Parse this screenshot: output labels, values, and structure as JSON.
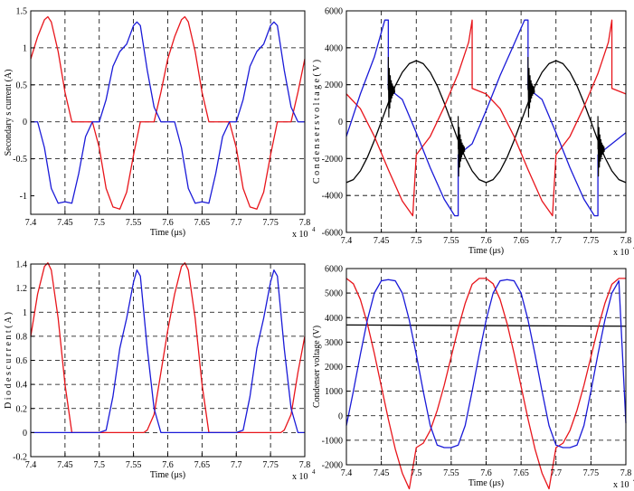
{
  "chart_data": [
    {
      "type": "line",
      "xlabel": "Time (μs)",
      "ylabel": "Secondary s current (A)",
      "x_multiplier": "x 10",
      "x_multiplier_exp": "4",
      "xlim": [
        7.4,
        7.8
      ],
      "ylim": [
        -1.25,
        1.5
      ],
      "xticks": [
        "7.4",
        "7.45",
        "7.5",
        "7.55",
        "7.6",
        "7.65",
        "7.7",
        "7.75",
        "7.8"
      ],
      "yticks": [
        "-1",
        "-0.5",
        "0",
        "0.5",
        "1",
        "1.5"
      ],
      "ytick_values": [
        -1,
        -0.5,
        0,
        0.5,
        1,
        1.5
      ],
      "grid": "dashed",
      "series": [
        {
          "color": "#e8151b",
          "x": [
            7.4,
            7.41,
            7.42,
            7.425,
            7.43,
            7.44,
            7.45,
            7.46,
            7.47,
            7.48,
            7.49,
            7.5,
            7.51,
            7.52,
            7.53,
            7.54,
            7.55,
            7.56,
            7.57,
            7.58,
            7.59,
            7.6,
            7.61,
            7.62,
            7.625,
            7.63,
            7.64,
            7.65,
            7.66,
            7.67,
            7.68,
            7.69,
            7.7,
            7.71,
            7.72,
            7.73,
            7.74,
            7.75,
            7.76,
            7.77,
            7.78,
            7.79,
            7.8
          ],
          "y": [
            0.85,
            1.15,
            1.38,
            1.42,
            1.35,
            0.95,
            0.4,
            0,
            0,
            0,
            0,
            -0.35,
            -0.9,
            -1.15,
            -1.18,
            -0.95,
            -0.45,
            0,
            0,
            0,
            0.4,
            0.85,
            1.15,
            1.38,
            1.42,
            1.35,
            0.95,
            0.4,
            0,
            0,
            0,
            0,
            -0.35,
            -0.9,
            -1.15,
            -1.18,
            -0.95,
            -0.45,
            0,
            0,
            0,
            0.4,
            0.85
          ]
        },
        {
          "color": "#1a1ad8",
          "x": [
            7.4,
            7.41,
            7.42,
            7.43,
            7.44,
            7.45,
            7.46,
            7.47,
            7.48,
            7.49,
            7.5,
            7.51,
            7.52,
            7.53,
            7.54,
            7.55,
            7.555,
            7.56,
            7.57,
            7.58,
            7.59,
            7.6,
            7.61,
            7.62,
            7.63,
            7.64,
            7.65,
            7.66,
            7.67,
            7.68,
            7.69,
            7.7,
            7.71,
            7.72,
            7.73,
            7.74,
            7.75,
            7.755,
            7.76,
            7.77,
            7.78,
            7.79,
            7.8
          ],
          "y": [
            0,
            0,
            -0.35,
            -0.9,
            -1.1,
            -1.08,
            -1.1,
            -0.7,
            -0.2,
            0,
            0,
            0.3,
            0.75,
            0.95,
            1.05,
            1.3,
            1.35,
            1.3,
            0.7,
            0.2,
            0,
            0,
            0,
            -0.35,
            -0.9,
            -1.1,
            -1.08,
            -1.1,
            -0.7,
            -0.2,
            0,
            0,
            0.3,
            0.75,
            0.95,
            1.05,
            1.3,
            1.35,
            1.3,
            0.7,
            0.2,
            0,
            0
          ]
        }
      ]
    },
    {
      "type": "line",
      "xlabel": "Time (μs)",
      "ylabel": "C o n d e n s e r s v o l t a g e ( V )",
      "x_multiplier": "x 10",
      "x_multiplier_exp": "4",
      "xlim": [
        7.4,
        7.8
      ],
      "ylim": [
        -6000,
        6000
      ],
      "xticks": [
        "7.4",
        "7.45",
        "7.5",
        "7.55",
        "7.6",
        "7.65",
        "7.7",
        "7.75",
        "7.8"
      ],
      "yticks": [
        "-6000",
        "-4000",
        "-2000",
        "0",
        "2000",
        "4000",
        "6000"
      ],
      "ytick_values": [
        -6000,
        -4000,
        -2000,
        0,
        2000,
        4000,
        6000
      ],
      "grid": "dashed",
      "series": [
        {
          "color": "#000000",
          "x": [
            7.4,
            7.41,
            7.42,
            7.43,
            7.44,
            7.45,
            7.46,
            7.47,
            7.48,
            7.49,
            7.5,
            7.51,
            7.52,
            7.53,
            7.54,
            7.55,
            7.56,
            7.57,
            7.58,
            7.59,
            7.6,
            7.61,
            7.62,
            7.63,
            7.64,
            7.65,
            7.66,
            7.67,
            7.68,
            7.69,
            7.7,
            7.71,
            7.72,
            7.73,
            7.74,
            7.75,
            7.76,
            7.77,
            7.78,
            7.79,
            7.8
          ],
          "y": [
            -3300,
            -3140,
            -2670,
            -1940,
            -1020,
            0,
            1020,
            1940,
            2670,
            3140,
            3300,
            3140,
            2670,
            1940,
            1020,
            0,
            -1020,
            -1940,
            -2670,
            -3140,
            -3300,
            -3140,
            -2670,
            -1940,
            -1020,
            0,
            1020,
            1940,
            2670,
            3140,
            3300,
            3140,
            2670,
            1940,
            1020,
            0,
            -1020,
            -1940,
            -2670,
            -3140,
            -3300
          ]
        },
        {
          "color": "#e8151b",
          "x": [
            7.4,
            7.42,
            7.44,
            7.46,
            7.48,
            7.495,
            7.5,
            7.52,
            7.54,
            7.56,
            7.575,
            7.58,
            7.58,
            7.6,
            7.62,
            7.64,
            7.66,
            7.68,
            7.695,
            7.7,
            7.72,
            7.74,
            7.76,
            7.775,
            7.78,
            7.78,
            7.8
          ],
          "y": [
            1500,
            700,
            -800,
            -2600,
            -4300,
            -5100,
            -1800,
            -800,
            800,
            2600,
            4300,
            5500,
            1800,
            1500,
            700,
            -800,
            -2600,
            -4300,
            -5100,
            -1800,
            -800,
            800,
            2600,
            4300,
            5500,
            1800,
            1500
          ]
        },
        {
          "color": "#1a1ad8",
          "x": [
            7.4,
            7.42,
            7.44,
            7.455,
            7.46,
            7.46,
            7.48,
            7.5,
            7.52,
            7.54,
            7.555,
            7.56,
            7.56,
            7.58,
            7.6,
            7.62,
            7.64,
            7.655,
            7.66,
            7.66,
            7.68,
            7.7,
            7.72,
            7.74,
            7.755,
            7.76,
            7.76,
            7.78,
            7.8
          ],
          "y": [
            -800,
            1500,
            3500,
            5500,
            5500,
            1800,
            1200,
            -600,
            -2500,
            -4200,
            -5100,
            -5100,
            -1800,
            -1200,
            600,
            2500,
            4200,
            5500,
            5500,
            1800,
            1200,
            -600,
            -2500,
            -4200,
            -5100,
            -5100,
            -1800,
            -1200,
            -600
          ]
        }
      ]
    },
    {
      "type": "line",
      "xlabel": "Time (μs)",
      "ylabel": "D i o d e s c u r r e n t ( A )",
      "x_multiplier": "x 10",
      "x_multiplier_exp": "4",
      "xlim": [
        7.4,
        7.8
      ],
      "ylim": [
        -0.2,
        1.4
      ],
      "xticks": [
        "7.4",
        "7.45",
        "7.5",
        "7.55",
        "7.6",
        "7.65",
        "7.7",
        "7.75",
        "7.8"
      ],
      "yticks": [
        "-0.2",
        "0",
        "0.2",
        "0.4",
        "0.6",
        "0.8",
        "1",
        "1.2",
        "1.4"
      ],
      "ytick_values": [
        -0.2,
        0,
        0.2,
        0.4,
        0.6,
        0.8,
        1,
        1.2,
        1.4
      ],
      "grid": "dashed",
      "series": [
        {
          "color": "#e8151b",
          "x": [
            7.4,
            7.41,
            7.42,
            7.425,
            7.43,
            7.44,
            7.45,
            7.46,
            7.47,
            7.5,
            7.565,
            7.57,
            7.58,
            7.59,
            7.6,
            7.61,
            7.62,
            7.625,
            7.63,
            7.64,
            7.65,
            7.66,
            7.67,
            7.7,
            7.765,
            7.77,
            7.78,
            7.79,
            7.8
          ],
          "y": [
            0.8,
            1.15,
            1.38,
            1.41,
            1.35,
            0.95,
            0.4,
            0,
            0,
            0,
            0,
            0.02,
            0.15,
            0.5,
            0.85,
            1.15,
            1.38,
            1.41,
            1.35,
            0.95,
            0.4,
            0,
            0,
            0,
            0,
            0.02,
            0.15,
            0.5,
            0.8
          ]
        },
        {
          "color": "#1a1ad8",
          "x": [
            7.4,
            7.49,
            7.5,
            7.51,
            7.52,
            7.53,
            7.54,
            7.55,
            7.555,
            7.56,
            7.57,
            7.58,
            7.59,
            7.6,
            7.69,
            7.7,
            7.71,
            7.72,
            7.73,
            7.74,
            7.75,
            7.755,
            7.76,
            7.77,
            7.78,
            7.79,
            7.8
          ],
          "y": [
            0,
            0,
            0,
            0.02,
            0.3,
            0.7,
            0.95,
            1.25,
            1.35,
            1.3,
            0.7,
            0.2,
            0,
            0,
            0,
            0,
            0.02,
            0.3,
            0.7,
            0.95,
            1.25,
            1.35,
            1.3,
            0.7,
            0.2,
            0,
            0
          ]
        }
      ]
    },
    {
      "type": "line",
      "xlabel": "Time (μs)",
      "ylabel": "Condenser voltage (V)",
      "x_multiplier": "x 10",
      "x_multiplier_exp": "4",
      "xlim": [
        7.4,
        7.8
      ],
      "ylim": [
        -2000,
        6000
      ],
      "xticks": [
        "7.4",
        "7.45",
        "7.5",
        "7.55",
        "7.6",
        "7.65",
        "7.7",
        "7.75",
        "7.8"
      ],
      "yticks": [
        "-2000",
        "-1000",
        "0",
        "1000",
        "2000",
        "3000",
        "4000",
        "5000",
        "6000"
      ],
      "ytick_values": [
        -2000,
        -1000,
        0,
        1000,
        2000,
        3000,
        4000,
        5000,
        6000
      ],
      "grid": "dashed",
      "series": [
        {
          "color": "#000000",
          "x": [
            7.4,
            7.8
          ],
          "y": [
            3700,
            3650
          ]
        },
        {
          "color": "#e8151b",
          "x": [
            7.4,
            7.41,
            7.42,
            7.43,
            7.44,
            7.45,
            7.46,
            7.47,
            7.48,
            7.49,
            7.5,
            7.51,
            7.52,
            7.53,
            7.54,
            7.55,
            7.56,
            7.57,
            7.58,
            7.59,
            7.6,
            7.61,
            7.62,
            7.63,
            7.64,
            7.65,
            7.66,
            7.67,
            7.68,
            7.69,
            7.7,
            7.71,
            7.72,
            7.73,
            7.74,
            7.75,
            7.76,
            7.77,
            7.78,
            7.79,
            7.8
          ],
          "y": [
            5600,
            5380,
            4740,
            3760,
            2540,
            1200,
            -140,
            -1360,
            -2340,
            -2980,
            -1300,
            -1120,
            -600,
            220,
            1240,
            2400,
            3560,
            4580,
            5360,
            5600,
            5600,
            5380,
            4740,
            3760,
            2540,
            1200,
            -140,
            -1360,
            -2340,
            -2980,
            -1300,
            -1120,
            -600,
            220,
            1240,
            2400,
            3560,
            4580,
            5360,
            5600,
            5600
          ]
        },
        {
          "color": "#1a1ad8",
          "x": [
            7.4,
            7.41,
            7.42,
            7.43,
            7.44,
            7.45,
            7.46,
            7.47,
            7.48,
            7.49,
            7.5,
            7.51,
            7.52,
            7.53,
            7.54,
            7.55,
            7.56,
            7.57,
            7.58,
            7.59,
            7.6,
            7.61,
            7.62,
            7.63,
            7.64,
            7.65,
            7.66,
            7.67,
            7.68,
            7.69,
            7.7,
            7.71,
            7.72,
            7.73,
            7.74,
            7.75,
            7.76,
            7.77,
            7.78,
            7.79,
            7.8
          ],
          "y": [
            -400,
            1000,
            2500,
            3900,
            5000,
            5500,
            5550,
            5500,
            5000,
            3900,
            2500,
            1000,
            -400,
            -1200,
            -1300,
            -1300,
            -1200,
            -400,
            1000,
            2500,
            3900,
            5000,
            5500,
            5550,
            5500,
            5000,
            3900,
            2500,
            1000,
            -400,
            -1200,
            -1300,
            -1300,
            -1200,
            -400,
            1000,
            2500,
            3900,
            5000,
            5500,
            -300
          ]
        }
      ]
    }
  ],
  "style": {
    "axis_color": "#000000",
    "grid_color": "#000000",
    "red": "#e8151b",
    "blue": "#1a1ad8",
    "black": "#000000"
  }
}
